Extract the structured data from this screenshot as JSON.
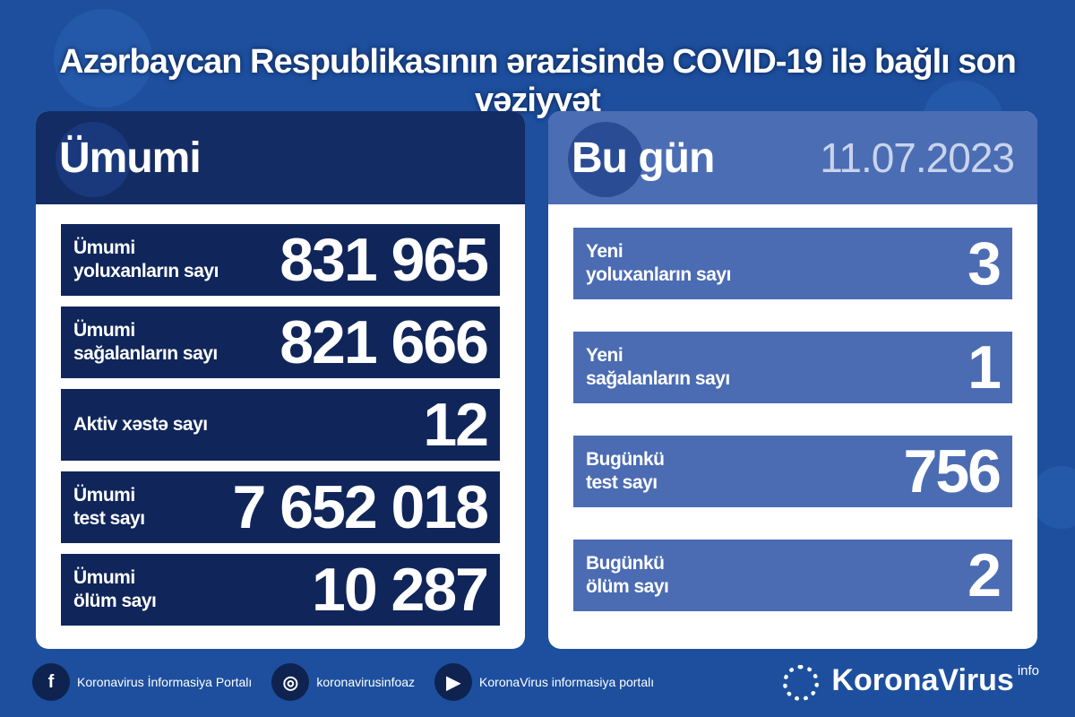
{
  "title": "Azərbaycan Respublikasının ərazisində COVID-19 ilə bağlı son vəziyyət",
  "total": {
    "heading": "Ümumi",
    "rows": [
      {
        "label": "Ümumi\nyoluxanların sayı",
        "value": "831 965"
      },
      {
        "label": "Ümumi\nsağalanların sayı",
        "value": "821 666"
      },
      {
        "label": "Aktiv xəstə sayı",
        "value": "12"
      },
      {
        "label": "Ümumi\ntest sayı",
        "value": "7 652 018"
      },
      {
        "label": "Ümumi\nölüm sayı",
        "value": "10 287"
      }
    ]
  },
  "today": {
    "heading": "Bu gün",
    "date": "11.07.2023",
    "rows": [
      {
        "label": "Yeni\nyoluxanların sayı",
        "value": "3"
      },
      {
        "label": "Yeni\nsağalanların sayı",
        "value": "1"
      },
      {
        "label": "Bugünkü\ntest sayı",
        "value": "756"
      },
      {
        "label": "Bugünkü\nölüm sayı",
        "value": "2"
      }
    ]
  },
  "footer": {
    "facebook": "Koronavirus İnformasiya Portalı",
    "instagram": "koronavirusinfoaz",
    "youtube": "KoronaVirus informasiya portalı",
    "brand": "KoronaVirus",
    "brand_sup": "info"
  },
  "colors": {
    "background": "#1d4f9e",
    "left_panel": "#142c64",
    "right_panel": "#4b6db4"
  }
}
